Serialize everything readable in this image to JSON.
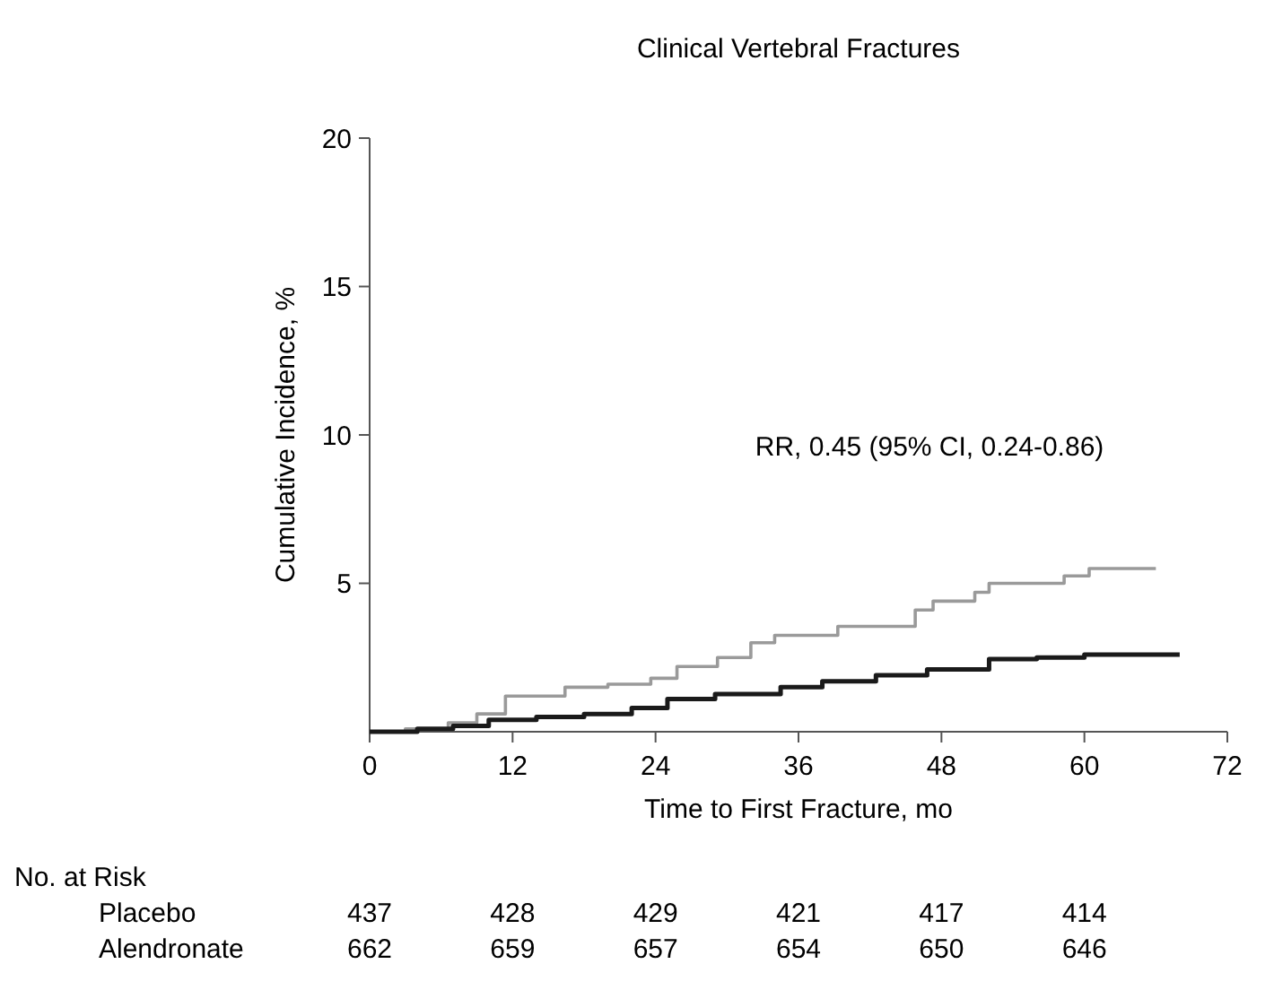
{
  "chart_data": {
    "type": "step",
    "title": "Clinical Vertebral Fractures",
    "xlabel": "Time to First Fracture, mo",
    "ylabel": "Cumulative Incidence, %",
    "xlim": [
      0,
      72
    ],
    "xticks": [
      0,
      12,
      24,
      36,
      48,
      60,
      72
    ],
    "ylim": [
      0,
      20
    ],
    "yticks": [
      5,
      10,
      15,
      20
    ],
    "grid": false,
    "series": [
      {
        "color": "#9a9a9a",
        "x": [
          0,
          3,
          6.6,
          9,
          11.4,
          16.4,
          20,
          23.6,
          25.8,
          29.2,
          32,
          34,
          39.3,
          45.8,
          47.3,
          50.8,
          52,
          58.3,
          60.4,
          66
        ],
        "values": [
          0,
          0.1,
          0.3,
          0.6,
          1.2,
          1.5,
          1.6,
          1.8,
          2.2,
          2.5,
          3.0,
          3.25,
          3.55,
          4.1,
          4.4,
          4.7,
          5.0,
          5.25,
          5.5,
          5.5
        ]
      },
      {
        "color": "#1a1a1a",
        "x": [
          0,
          4,
          7,
          10,
          14,
          18,
          22,
          25,
          29,
          34.5,
          38,
          42.5,
          46.8,
          52,
          56,
          60,
          68
        ],
        "values": [
          0,
          0.1,
          0.2,
          0.4,
          0.5,
          0.6,
          0.8,
          1.1,
          1.27,
          1.5,
          1.7,
          1.9,
          2.1,
          2.45,
          2.5,
          2.6,
          2.6
        ]
      }
    ],
    "annotations": [
      "RR, 0.45 (95% CI, 0.24-0.86)",
      "No. at Risk",
      "Placebo\t437\t428\t429\t421\t417\t414",
      "Alendronate\t662\t659\t657\t654\t650\t646"
    ]
  }
}
